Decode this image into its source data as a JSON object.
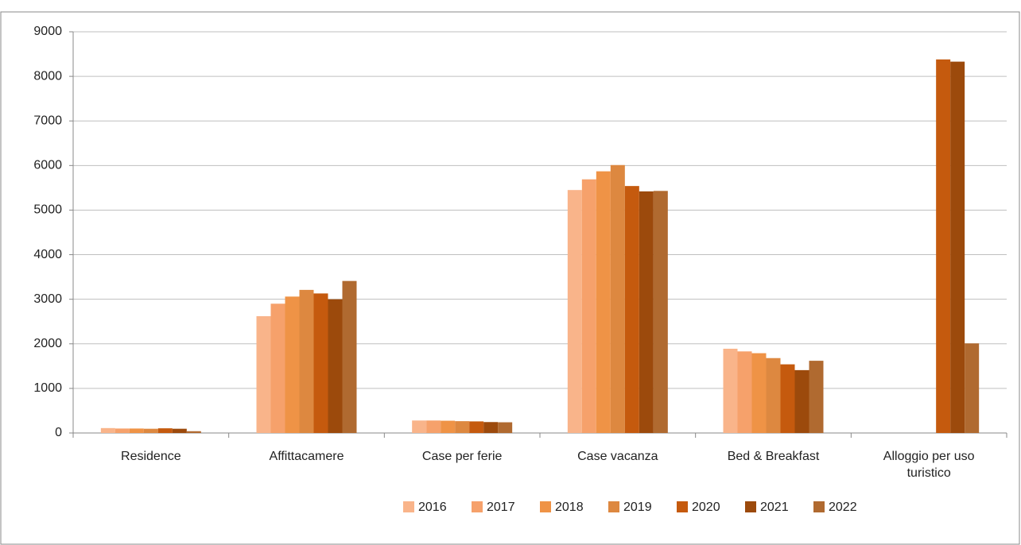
{
  "chart_data": {
    "type": "bar",
    "categories": [
      "Residence",
      "Affittacamere",
      "Case per ferie",
      "Case vacanza",
      "Bed & Breakfast",
      "Alloggio per uso turistico"
    ],
    "series": [
      {
        "name": "2016",
        "color": "#f9b48a",
        "values": [
          110,
          2620,
          280,
          5450,
          1890,
          null
        ]
      },
      {
        "name": "2017",
        "color": "#f6a16b",
        "values": [
          100,
          2900,
          280,
          5690,
          1830,
          null
        ]
      },
      {
        "name": "2018",
        "color": "#ef9346",
        "values": [
          100,
          3060,
          275,
          5870,
          1790,
          null
        ]
      },
      {
        "name": "2019",
        "color": "#dd8840",
        "values": [
          95,
          3210,
          265,
          6010,
          1680,
          null
        ]
      },
      {
        "name": "2020",
        "color": "#c55a0e",
        "values": [
          105,
          3130,
          260,
          5540,
          1540,
          8380
        ]
      },
      {
        "name": "2021",
        "color": "#9c4a0c",
        "values": [
          95,
          3000,
          245,
          5420,
          1410,
          8330
        ]
      },
      {
        "name": "2022",
        "color": "#b06a30",
        "values": [
          40,
          3410,
          240,
          5430,
          1620,
          2010
        ]
      }
    ],
    "ylim": [
      0,
      9000
    ],
    "yticks": [
      0,
      1000,
      2000,
      3000,
      4000,
      5000,
      6000,
      7000,
      8000,
      9000
    ],
    "grid": true,
    "legend": "bottom"
  }
}
